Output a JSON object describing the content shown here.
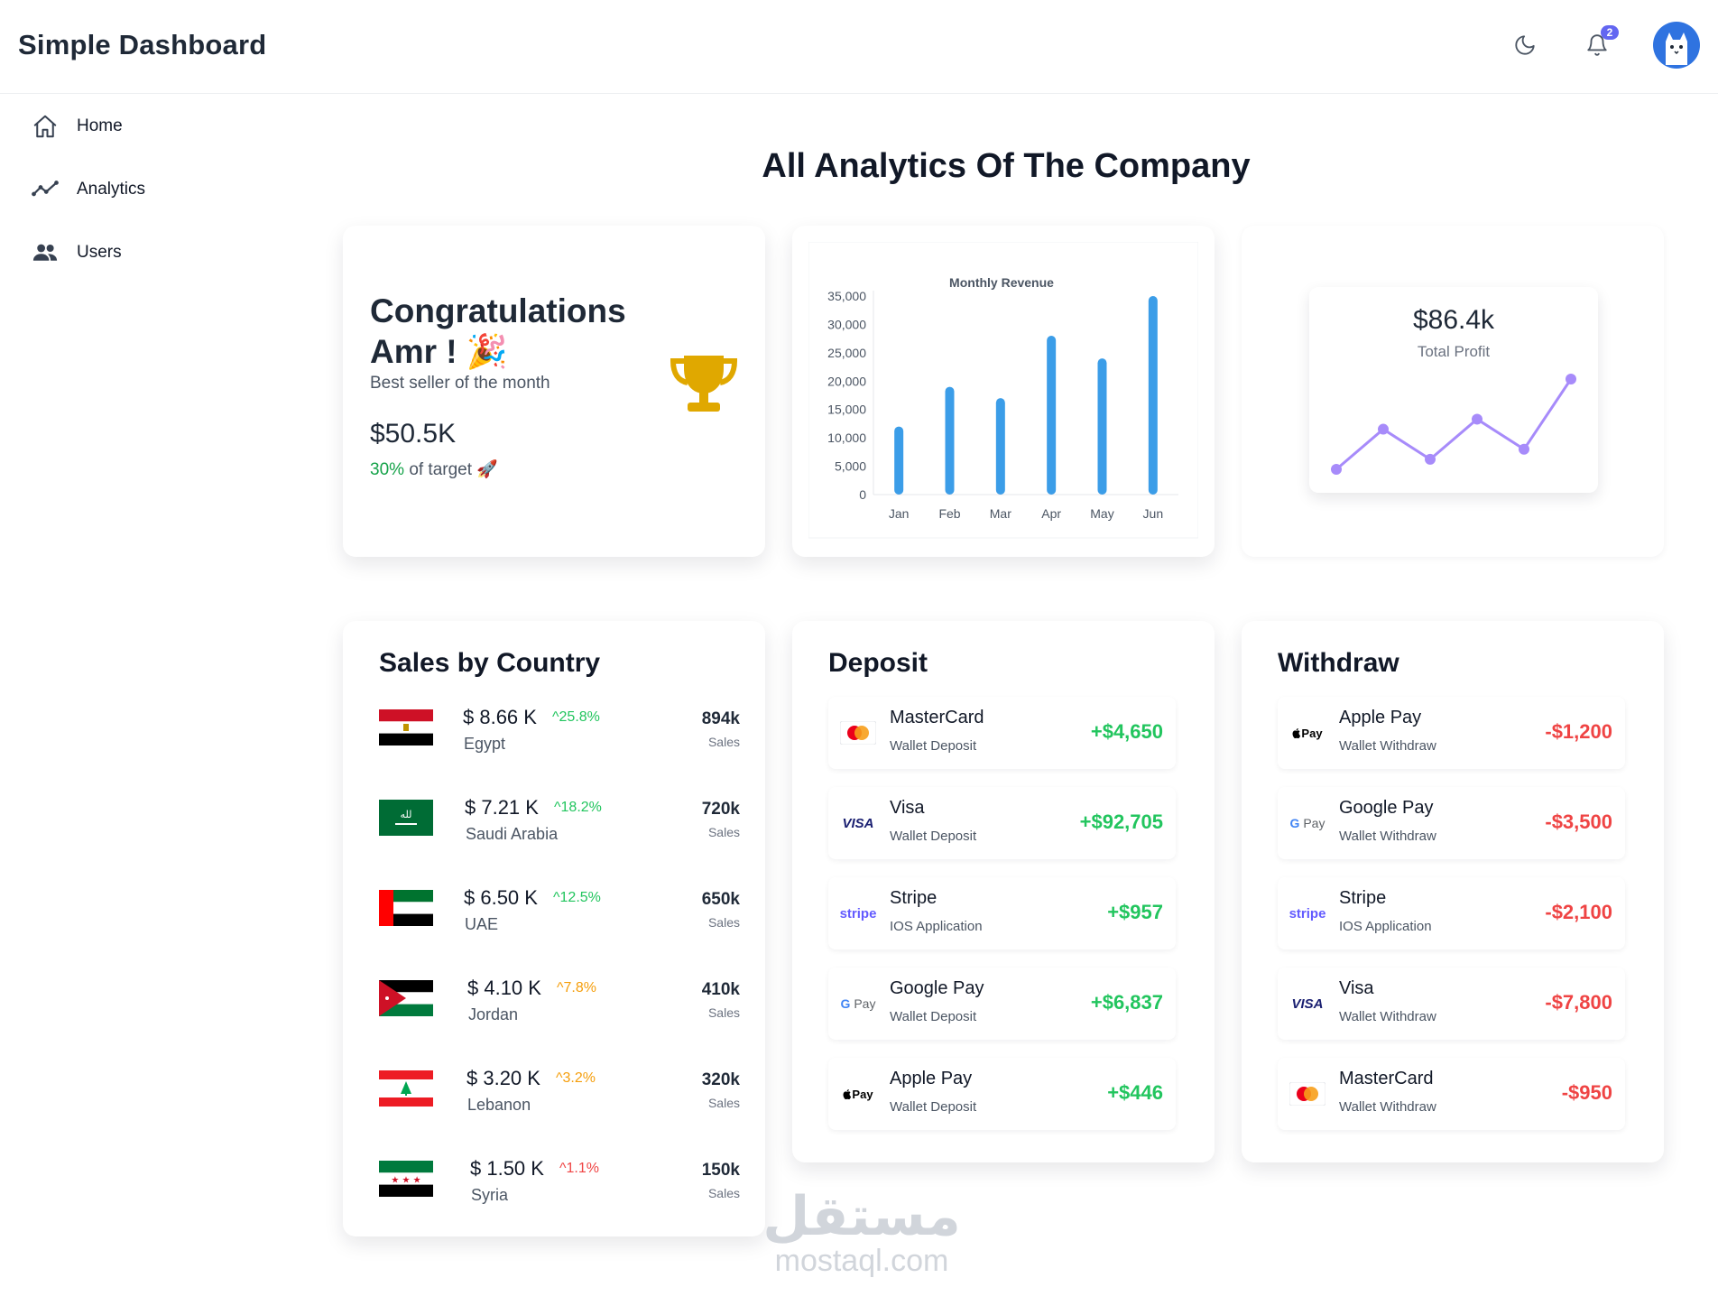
{
  "app": {
    "title": "Simple Dashboard",
    "notification_count": "2",
    "accent_color": "#6366f1"
  },
  "sidebar": {
    "items": [
      {
        "label": "Home",
        "icon": "home-icon"
      },
      {
        "label": "Analytics",
        "icon": "trend-icon"
      },
      {
        "label": "Users",
        "icon": "users-icon"
      }
    ]
  },
  "page": {
    "title": "All Analytics Of The Company"
  },
  "congrats": {
    "title": "Congratulations Amr !",
    "emoji": "🎉",
    "subtitle": "Best seller of the month",
    "amount": "$50.5K",
    "target_pct": "30%",
    "target_text": "of target",
    "target_emoji": "🚀",
    "icon": "trophy-icon"
  },
  "profit": {
    "value": "$86.4k",
    "label": "Total Profit",
    "line_color": "#a78bfa",
    "points": [
      3,
      7,
      4,
      8,
      5,
      12
    ]
  },
  "chart_data": {
    "type": "bar",
    "title": "Monthly Revenue",
    "categories": [
      "Jan",
      "Feb",
      "Mar",
      "Apr",
      "May",
      "Jun"
    ],
    "values": [
      12000,
      19000,
      17000,
      28000,
      24000,
      35000
    ],
    "ylim": [
      0,
      35000
    ],
    "yticks": [
      "0",
      "5,000",
      "10,000",
      "15,000",
      "20,000",
      "25,000",
      "30,000",
      "35,000"
    ],
    "color": "#3b9de8",
    "xlabel": "",
    "ylabel": ""
  },
  "sales": {
    "title": "Sales by Country",
    "rows": [
      {
        "amount": "$ 8.66 K",
        "change": "25.8%",
        "change_color": "#22c55e",
        "country": "Egypt",
        "count": "894k",
        "count_label": "Sales"
      },
      {
        "amount": "$ 7.21 K",
        "change": "18.2%",
        "change_color": "#22c55e",
        "country": "Saudi Arabia",
        "count": "720k",
        "count_label": "Sales"
      },
      {
        "amount": "$ 6.50 K",
        "change": "12.5%",
        "change_color": "#22c55e",
        "country": "UAE",
        "count": "650k",
        "count_label": "Sales"
      },
      {
        "amount": "$ 4.10 K",
        "change": "7.8%",
        "change_color": "#f59e0b",
        "country": "Jordan",
        "count": "410k",
        "count_label": "Sales"
      },
      {
        "amount": "$ 3.20 K",
        "change": "3.2%",
        "change_color": "#f59e0b",
        "country": "Lebanon",
        "count": "320k",
        "count_label": "Sales"
      },
      {
        "amount": "$ 1.50 K",
        "change": "1.1%",
        "change_color": "#ef4444",
        "country": "Syria",
        "count": "150k",
        "count_label": "Sales"
      }
    ]
  },
  "deposit": {
    "title": "Deposit",
    "rows": [
      {
        "name": "MasterCard",
        "sub": "Wallet Deposit",
        "amount": "+$4,650",
        "logo": "mastercard-icon"
      },
      {
        "name": "Visa",
        "sub": "Wallet Deposit",
        "amount": "+$92,705",
        "logo": "visa-icon"
      },
      {
        "name": "Stripe",
        "sub": "IOS Application",
        "amount": "+$957",
        "logo": "stripe-icon"
      },
      {
        "name": "Google Pay",
        "sub": "Wallet Deposit",
        "amount": "+$6,837",
        "logo": "google-pay-icon"
      },
      {
        "name": "Apple Pay",
        "sub": "Wallet Deposit",
        "amount": "+$446",
        "logo": "apple-pay-icon"
      }
    ]
  },
  "withdraw": {
    "title": "Withdraw",
    "rows": [
      {
        "name": "Apple Pay",
        "sub": "Wallet Withdraw",
        "amount": "-$1,200",
        "logo": "apple-pay-icon"
      },
      {
        "name": "Google Pay",
        "sub": "Wallet Withdraw",
        "amount": "-$3,500",
        "logo": "google-pay-icon"
      },
      {
        "name": "Stripe",
        "sub": "IOS Application",
        "amount": "-$2,100",
        "logo": "stripe-icon"
      },
      {
        "name": "Visa",
        "sub": "Wallet Withdraw",
        "amount": "-$7,800",
        "logo": "visa-icon"
      },
      {
        "name": "MasterCard",
        "sub": "Wallet Withdraw",
        "amount": "-$950",
        "logo": "mastercard-icon"
      }
    ]
  },
  "logo_text": {
    "visa": "VISA",
    "stripe": "stripe",
    "gpay": "Pay",
    "gpay_g": "G",
    "applepay": "Pay"
  },
  "watermark": {
    "arabic": "مستقل",
    "latin": "mostaql.com"
  }
}
